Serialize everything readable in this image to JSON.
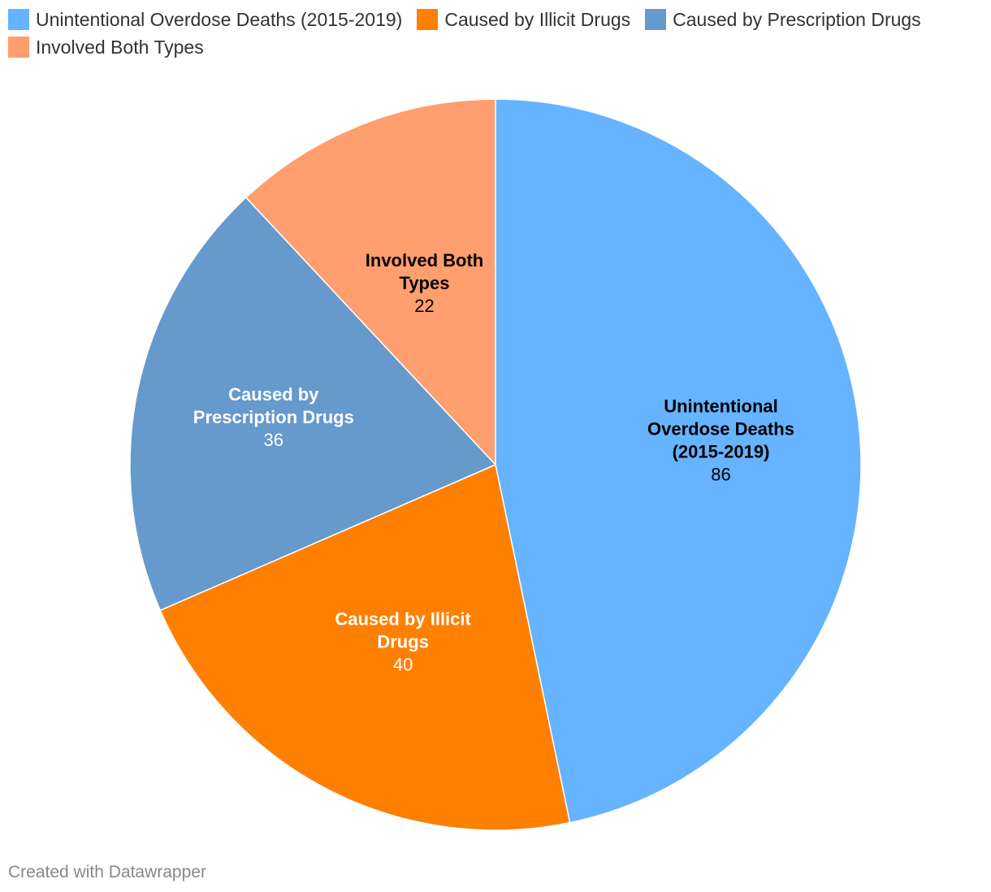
{
  "chart_data": {
    "type": "pie",
    "categories": [
      "Unintentional Overdose Deaths (2015-2019)",
      "Caused by Illicit Drugs",
      "Caused by Prescription Drugs",
      "Involved Both Types"
    ],
    "values": [
      86,
      40,
      36,
      22
    ],
    "colors": [
      "#66b3ff",
      "#ff7f00",
      "#6699cc",
      "#ff9e6e"
    ],
    "label_colors": [
      "#000000",
      "#ffffff",
      "#ffffff",
      "#000000"
    ],
    "slice_labels": [
      [
        "Unintentional",
        "Overdose Deaths",
        "(2015-2019)"
      ],
      [
        "Caused by Illicit",
        "Drugs"
      ],
      [
        "Caused by",
        "Prescription Drugs"
      ],
      [
        "Involved Both",
        "Types"
      ]
    ],
    "legend_position": "top-left",
    "start_angle": "12 o'clock",
    "direction": "clockwise"
  },
  "footer": {
    "credit": "Created with Datawrapper"
  }
}
